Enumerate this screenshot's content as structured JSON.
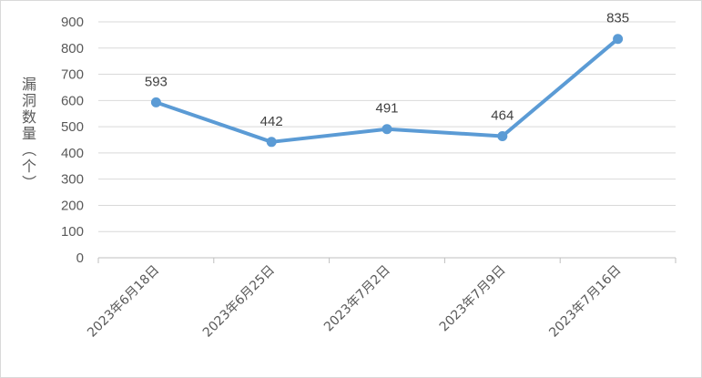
{
  "chart_data": {
    "type": "line",
    "title": "",
    "xlabel": "",
    "ylabel": "漏洞数量（个）",
    "categories": [
      "2023年6月18日",
      "2023年6月25日",
      "2023年7月2日",
      "2023年7月9日",
      "2023年7月16日"
    ],
    "series": [
      {
        "values": [
          593,
          442,
          491,
          464,
          835
        ],
        "color": "#5b9bd5"
      }
    ],
    "ylim": [
      0,
      900
    ],
    "yticks": [
      "0",
      "100",
      "200",
      "300",
      "400",
      "500",
      "600",
      "700",
      "800",
      "900"
    ],
    "grid": true,
    "data_labels": [
      "593",
      "442",
      "491",
      "464",
      "835"
    ],
    "legend": "none"
  }
}
